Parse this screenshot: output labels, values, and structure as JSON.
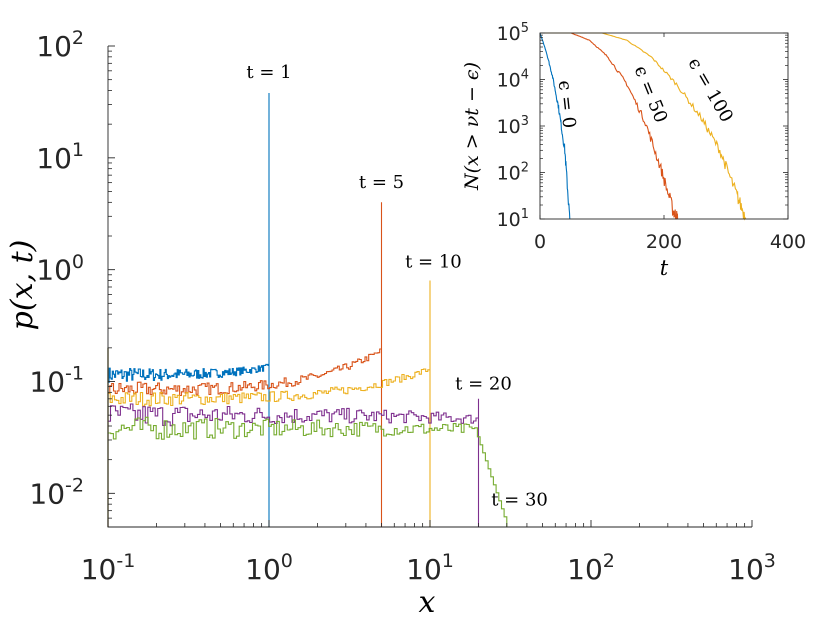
{
  "chart_data": [
    {
      "id": "main",
      "type": "line",
      "xscale": "log",
      "yscale": "log",
      "xlim": [
        0.1,
        1000
      ],
      "ylim": [
        0.005,
        100
      ],
      "xlabel": "x",
      "ylabel": "p(x, t)",
      "x_ticks": [
        {
          "value": 0.1,
          "base": "10",
          "exp": "-1"
        },
        {
          "value": 1,
          "base": "10",
          "exp": "0"
        },
        {
          "value": 10,
          "base": "10",
          "exp": "1"
        },
        {
          "value": 100,
          "base": "10",
          "exp": "2"
        },
        {
          "value": 1000,
          "base": "10",
          "exp": "3"
        }
      ],
      "y_ticks": [
        {
          "value": 0.01,
          "base": "10",
          "exp": "-2"
        },
        {
          "value": 0.1,
          "base": "10",
          "exp": "-1"
        },
        {
          "value": 1,
          "base": "10",
          "exp": "0"
        },
        {
          "value": 10,
          "base": "10",
          "exp": "1"
        },
        {
          "value": 100,
          "base": "10",
          "exp": "2"
        }
      ],
      "series": [
        {
          "label": "t = 1",
          "t": 1,
          "color": "#0072bd",
          "x_end": 1,
          "level_start": 0.115,
          "level_end": 0.135,
          "peak": 38,
          "label_x": 1.0,
          "label_y": 52
        },
        {
          "label": "t = 5",
          "t": 5,
          "color": "#d95319",
          "x_end": 5,
          "level_start": 0.085,
          "level_end": 0.19,
          "peak": 4.0,
          "label_x": 5.0,
          "label_y": 5.4
        },
        {
          "label": "t = 10",
          "t": 10,
          "color": "#edb120",
          "x_end": 10,
          "level_start": 0.07,
          "level_end": 0.13,
          "peak": 0.8,
          "label_x": 10.5,
          "label_y": 1.05
        },
        {
          "label": "t = 20",
          "t": 20,
          "color": "#7e2f8e",
          "x_end": 20,
          "level_start": 0.05,
          "level_end": 0.046,
          "peak": 0.07,
          "label_x": 21.5,
          "label_y": 0.085
        },
        {
          "label": "t = 30",
          "t": 30,
          "color": "#77ac30",
          "x_end": 30,
          "level_start": 0.038,
          "level_end": 0.037,
          "peak": 0.037,
          "label_x": 36,
          "label_y": 0.0078
        }
      ]
    },
    {
      "id": "inset",
      "type": "line",
      "xscale": "linear",
      "yscale": "log",
      "xlim": [
        0,
        400
      ],
      "ylim": [
        10,
        100000
      ],
      "xlabel": "t",
      "ylabel": "N(x > νt − ϵ)",
      "x_ticks": [
        0,
        200,
        400
      ],
      "y_ticks": [
        {
          "value": 10,
          "base": "10",
          "exp": "1"
        },
        {
          "value": 100,
          "base": "10",
          "exp": "2"
        },
        {
          "value": 1000,
          "base": "10",
          "exp": "3"
        },
        {
          "value": 10000,
          "base": "10",
          "exp": "4"
        },
        {
          "value": 100000,
          "base": "10",
          "exp": "5"
        }
      ],
      "series": [
        {
          "label": "ϵ = 0",
          "color": "#0072bd",
          "points": [
            [
              0,
              100000
            ],
            [
              10,
              40000
            ],
            [
              20,
              12000
            ],
            [
              30,
              2500
            ],
            [
              40,
              300
            ],
            [
              48,
              10
            ]
          ]
        },
        {
          "label": "ϵ = 50",
          "color": "#d95319",
          "points": [
            [
              0,
              100000
            ],
            [
              50,
              100000
            ],
            [
              80,
              70000
            ],
            [
              110,
              30000
            ],
            [
              140,
              8000
            ],
            [
              170,
              1200
            ],
            [
              195,
              120
            ],
            [
              215,
              15
            ],
            [
              222,
              10
            ]
          ]
        },
        {
          "label": "ϵ = 100",
          "color": "#edb120",
          "points": [
            [
              0,
              100000
            ],
            [
              100,
              100000
            ],
            [
              140,
              70000
            ],
            [
              180,
              30000
            ],
            [
              220,
              8000
            ],
            [
              260,
              1500
            ],
            [
              290,
              300
            ],
            [
              315,
              40
            ],
            [
              332,
              10
            ]
          ]
        }
      ],
      "annotations": [
        {
          "text": "ϵ = 0",
          "x": 34,
          "y": 380,
          "rotate": 84
        },
        {
          "text": "ϵ = 50",
          "x": 170,
          "y": 260,
          "rotate": 68
        },
        {
          "text": "ϵ = 100",
          "x": 267,
          "y": 210,
          "rotate": 60
        }
      ]
    }
  ]
}
